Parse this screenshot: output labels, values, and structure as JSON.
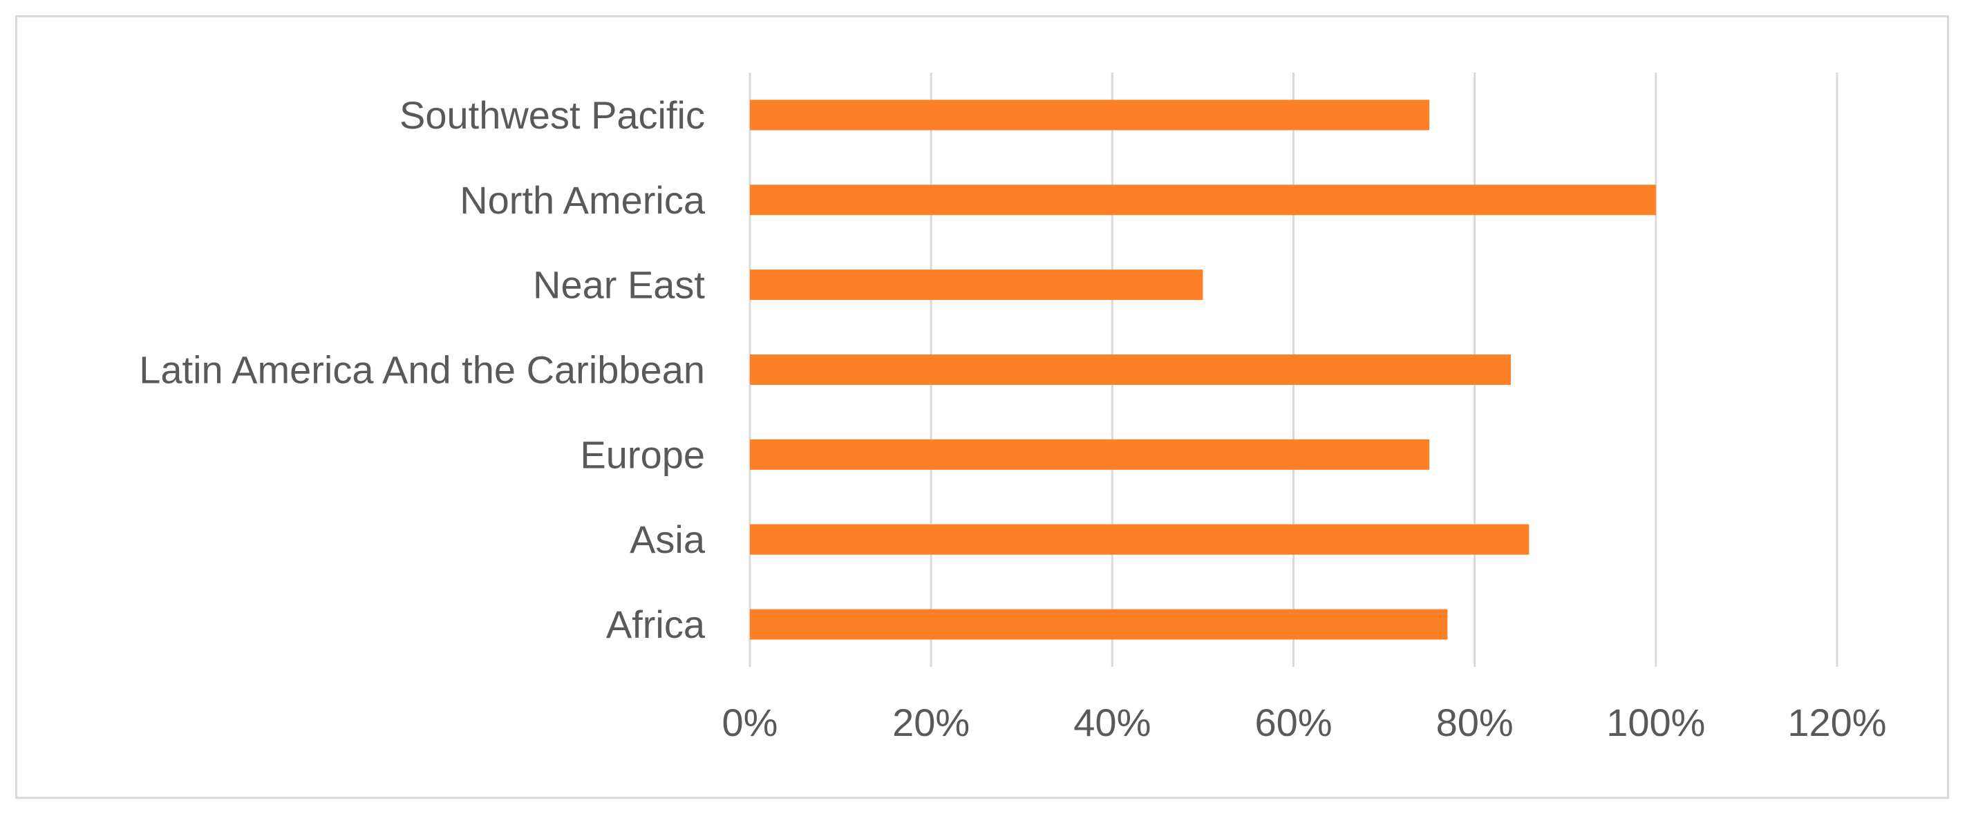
{
  "chart_data": {
    "type": "bar",
    "orientation": "horizontal",
    "title": "",
    "xlabel": "",
    "ylabel": "",
    "categories": [
      "Southwest Pacific",
      "North America",
      "Near East",
      "Latin America And the Caribbean",
      "Europe",
      "Asia",
      "Africa"
    ],
    "values": [
      0.75,
      1.0,
      0.5,
      0.84,
      0.75,
      0.86,
      0.77
    ],
    "xlim": [
      0,
      1.2
    ],
    "x_ticks": [
      "0%",
      "20%",
      "40%",
      "60%",
      "80%",
      "100%",
      "120%"
    ],
    "x_tick_values": [
      0,
      0.2,
      0.4,
      0.6,
      0.8,
      1.0,
      1.2
    ],
    "grid": "vertical",
    "legend": "none",
    "bar_color": "#FD7F26",
    "grid_color": "#D9D9D9",
    "text_color": "#595959"
  }
}
